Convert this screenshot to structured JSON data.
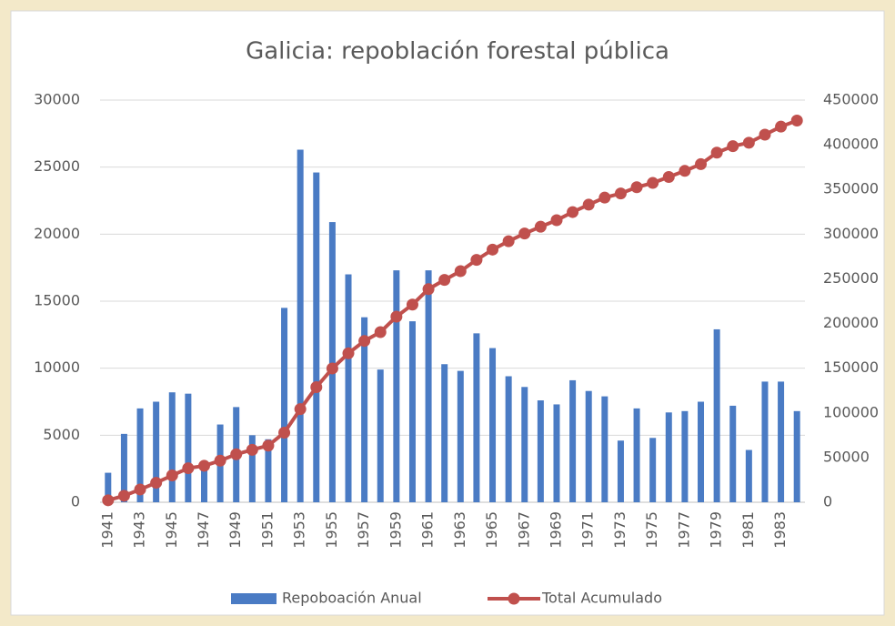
{
  "chart_data": {
    "type": "bar",
    "title": "Galicia: repoblación forestal pública",
    "categories": [
      "1941",
      null,
      "1943",
      null,
      "1945",
      null,
      "1947",
      null,
      "1949",
      null,
      "1951",
      null,
      "1953",
      null,
      "1955",
      null,
      "1957",
      null,
      "1959",
      null,
      "1961",
      null,
      "1963",
      null,
      "1965",
      null,
      "1967",
      null,
      "1969",
      null,
      "1971",
      null,
      "1973",
      null,
      "1975",
      null,
      "1977",
      null,
      "1979",
      null,
      "1981",
      null,
      "1983",
      null
    ],
    "series": [
      {
        "name": "Repoboación Anual",
        "type": "bar",
        "color": "#4a7bc4",
        "values": [
          2200,
          5100,
          7000,
          7500,
          8200,
          8100,
          2700,
          5800,
          7100,
          5000,
          4700,
          14500,
          26300,
          24600,
          20900,
          17000,
          13800,
          9900,
          17300,
          13500,
          17300,
          10300,
          9800,
          12600,
          11500,
          9400,
          8600,
          7600,
          7300,
          9100,
          8300,
          7900,
          4600,
          7000,
          4800,
          6700,
          6800,
          7500,
          12900,
          7200,
          3900,
          9000,
          9000,
          6800
        ]
      },
      {
        "name": "Total Acumulado",
        "type": "line",
        "axis": "y2",
        "color": "#c0504d",
        "values": [
          2200,
          7300,
          14300,
          21800,
          30000,
          38100,
          40800,
          46600,
          53700,
          58700,
          63400,
          77900,
          104200,
          128800,
          149700,
          166700,
          180500,
          190400,
          207700,
          221200,
          238500,
          248800,
          258600,
          271200,
          282700,
          292100,
          300700,
          308300,
          315600,
          324700,
          333000,
          340900,
          345500,
          352500,
          357300,
          364000,
          370800,
          378300,
          391200,
          398400,
          402300,
          411300,
          420300,
          427100
        ]
      }
    ],
    "ylim": [
      0,
      30000
    ],
    "yticks": [
      0,
      5000,
      10000,
      15000,
      20000,
      25000,
      30000
    ],
    "y2lim": [
      0,
      450000
    ],
    "y2ticks": [
      0,
      50000,
      100000,
      150000,
      200000,
      250000,
      300000,
      350000,
      400000,
      450000
    ],
    "grid": true,
    "legend": "bottom"
  }
}
